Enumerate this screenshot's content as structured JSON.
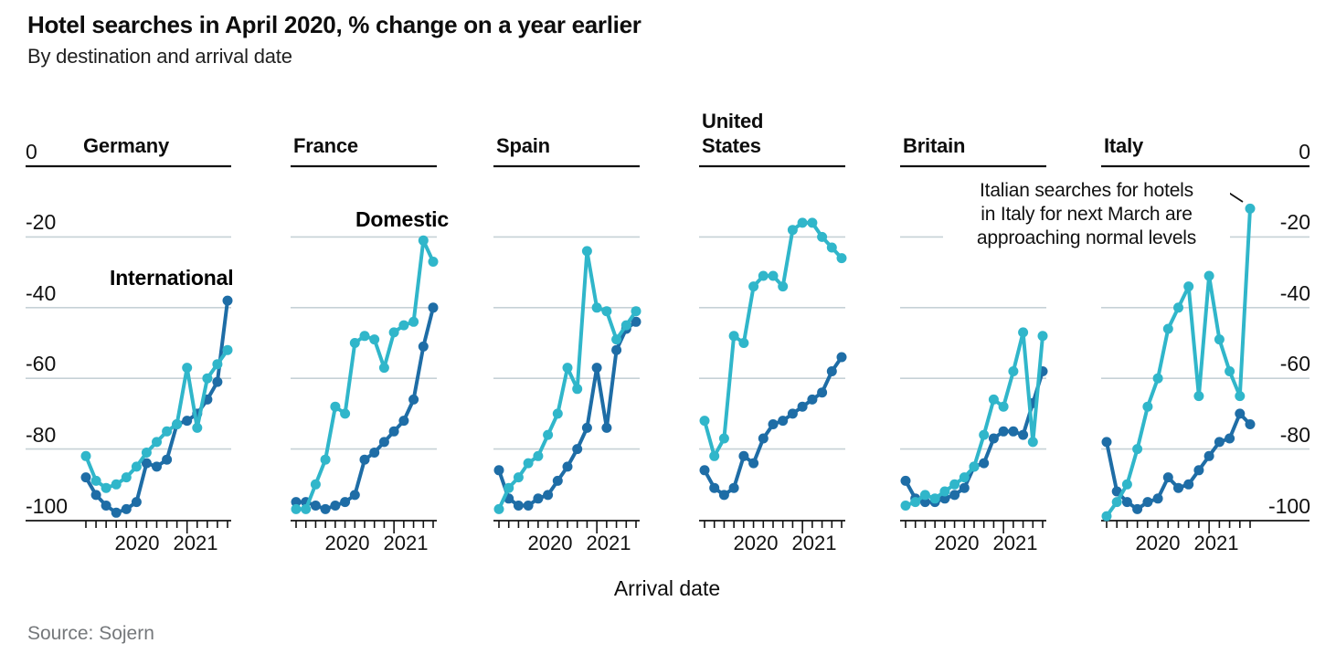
{
  "header": {
    "title": "Hotel searches in April 2020, % change on a year earlier",
    "subtitle": "By destination and arrival date"
  },
  "legend": {
    "domestic_label": "Domestic",
    "international_label": "International"
  },
  "colors": {
    "domestic": "#30b6ca",
    "international": "#1e6da6",
    "gridline": "#c6d1d6",
    "axis": "#121212"
  },
  "y_axis": {
    "tick_labels": [
      "0",
      "-20",
      "-40",
      "-60",
      "-80",
      "-100"
    ],
    "tick_values": [
      0,
      -20,
      -40,
      -60,
      -80,
      -100
    ]
  },
  "x_axis": {
    "title": "Arrival date",
    "year_labels": [
      "2020",
      "2021"
    ],
    "minor_tick_count": 15,
    "year_tick_index": 10
  },
  "annotation": {
    "line1": "Italian searches for hotels",
    "line2": "in Italy for next March are",
    "line3": "approaching normal levels"
  },
  "source": "Source: Sojern",
  "chart_data": {
    "type": "line",
    "title": "Hotel searches in April 2020, % change on a year earlier",
    "subtitle": "By destination and arrival date",
    "xlabel": "Arrival date",
    "x": "Monthly hotel arrival dates, early 2020 to mid 2021 (ticks monthly; year ticks at 2020 and 2021)",
    "ylim": [
      -105,
      0
    ],
    "yticks": [
      0,
      -20,
      -40,
      -60,
      -80,
      -100
    ],
    "grid": "horizontal only",
    "legend_position": "labels on chart (Domestic over France, International over Germany)",
    "series_names": [
      "Domestic",
      "International"
    ],
    "panels": [
      {
        "country": "Germany",
        "domestic": [
          -82,
          -89,
          -91,
          -90,
          -88,
          -85,
          -81,
          -78,
          -75,
          -73,
          -57,
          -74,
          -60,
          -56,
          -52
        ],
        "international": [
          -88,
          -93,
          -96,
          -98,
          -97,
          -95,
          -84,
          -85,
          -83,
          -73,
          -72,
          -70,
          -66,
          -61,
          -38
        ]
      },
      {
        "country": "France",
        "domestic": [
          -97,
          -97,
          -90,
          -83,
          -68,
          -70,
          -50,
          -48,
          -49,
          -57,
          -47,
          -45,
          -44,
          -21,
          -27
        ],
        "international": [
          -95,
          -95,
          -96,
          -97,
          -96,
          -95,
          -93,
          -83,
          -81,
          -78,
          -75,
          -72,
          -66,
          -51,
          -40
        ]
      },
      {
        "country": "Spain",
        "domestic": [
          -97,
          -91,
          -88,
          -84,
          -82,
          -76,
          -70,
          -57,
          -63,
          -24,
          -40,
          -41,
          -49,
          -45,
          -41
        ],
        "international": [
          -86,
          -94,
          -96,
          -96,
          -94,
          -93,
          -89,
          -85,
          -80,
          -74,
          -57,
          -74,
          -52,
          -46,
          -44
        ]
      },
      {
        "country": "United States",
        "domestic": [
          -72,
          -82,
          -77,
          -48,
          -50,
          -34,
          -31,
          -31,
          -34,
          -18,
          -16,
          -16,
          -20,
          -23,
          -26
        ],
        "international": [
          -86,
          -91,
          -93,
          -91,
          -82,
          -84,
          -77,
          -73,
          -72,
          -70,
          -68,
          -66,
          -64,
          -58,
          -54
        ]
      },
      {
        "country": "Britain",
        "domestic": [
          -96,
          -95,
          -93,
          -94,
          -92,
          -90,
          -88,
          -85,
          -76,
          -66,
          -68,
          -58,
          -47,
          -78,
          -48
        ],
        "international": [
          -89,
          -94,
          -95,
          -95,
          -94,
          -93,
          -91,
          -85,
          -84,
          -77,
          -75,
          -75,
          -76,
          -67,
          -58
        ]
      },
      {
        "country": "Italy",
        "domestic": [
          -99,
          -95,
          -90,
          -80,
          -68,
          -60,
          -46,
          -40,
          -34,
          -65,
          -31,
          -49,
          -58,
          -65,
          -12
        ],
        "international": [
          -78,
          -92,
          -95,
          -97,
          -95,
          -94,
          -88,
          -91,
          -90,
          -86,
          -82,
          -78,
          -77,
          -70,
          -73
        ]
      }
    ]
  }
}
